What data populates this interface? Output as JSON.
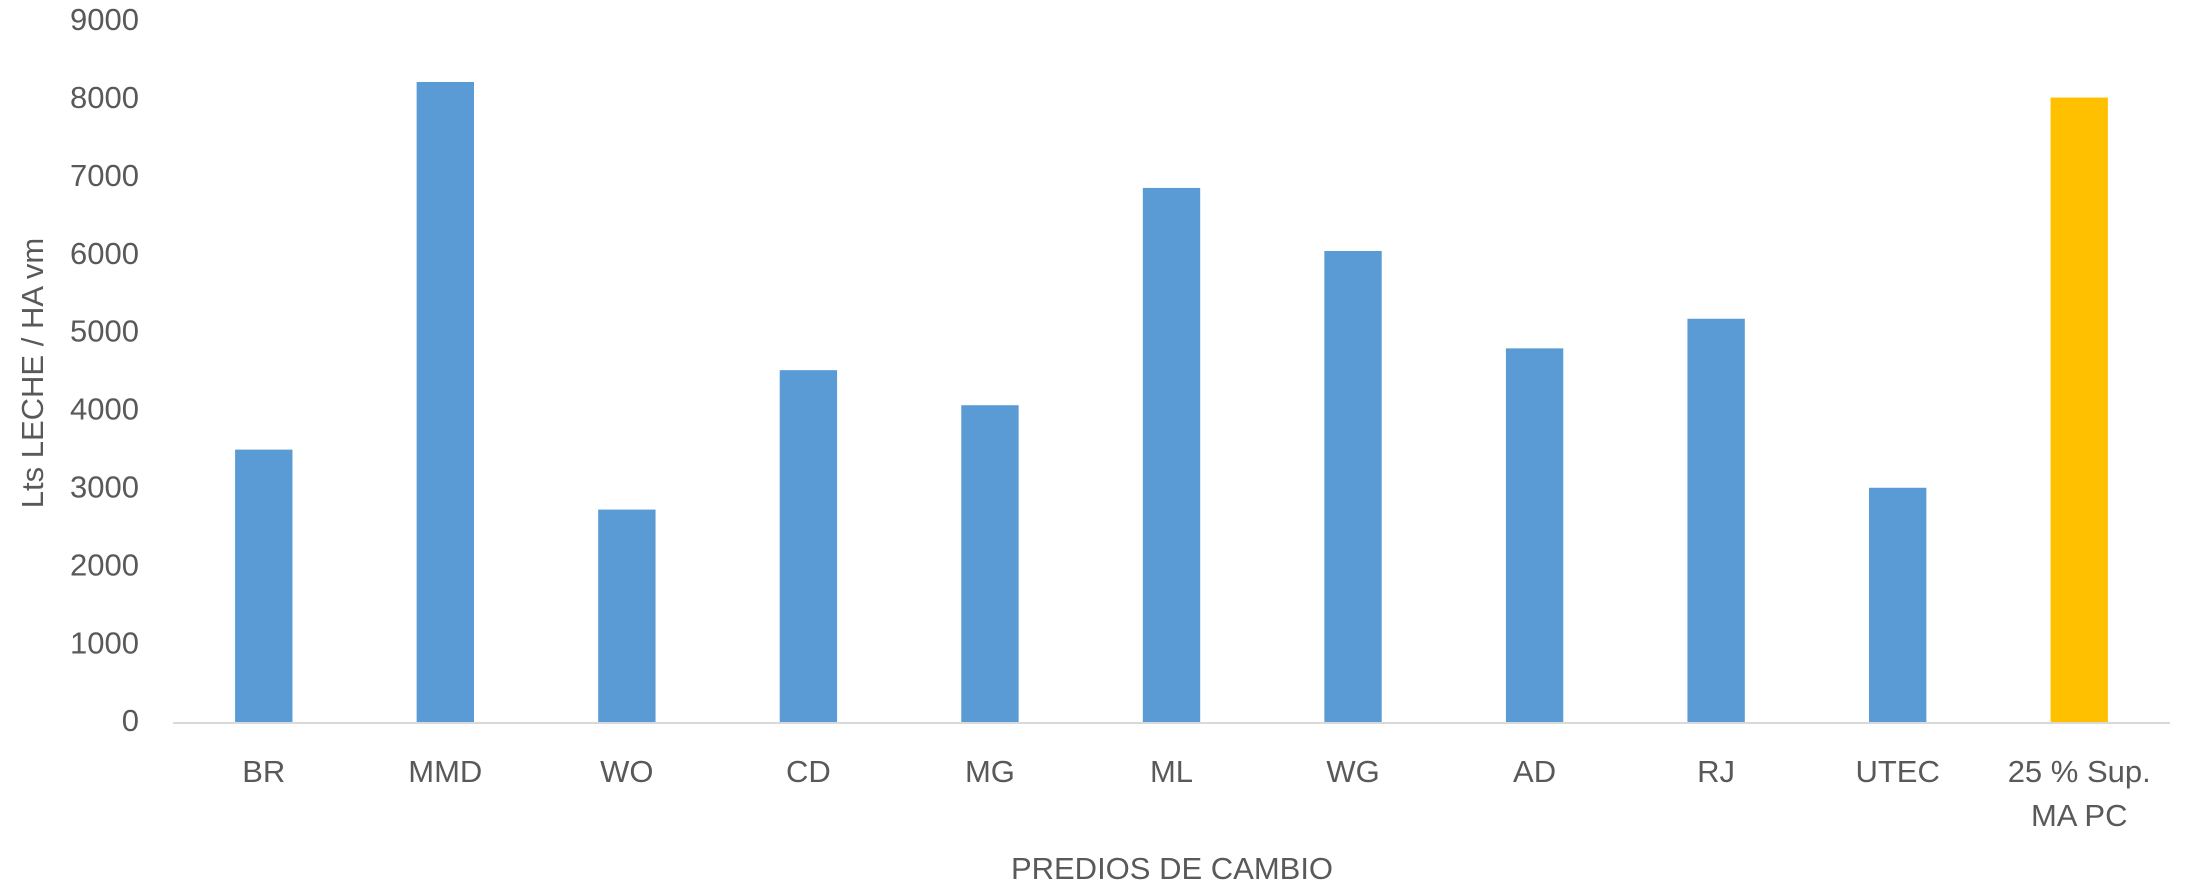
{
  "chart_data": {
    "type": "bar",
    "x_label": "PREDIOS DE CAMBIO",
    "y_label": "Lts LECHE / HA vm",
    "categories": [
      "BR",
      "MMD",
      "WO",
      "CD",
      "MG",
      "ML",
      "WG",
      "AD",
      "RJ",
      "UTEC",
      "25 % Sup. MA PC"
    ],
    "values": [
      3510,
      8230,
      2740,
      4530,
      4080,
      6870,
      6060,
      4810,
      5190,
      3020,
      8030
    ],
    "colors": [
      "#5b9bd5",
      "#5b9bd5",
      "#5b9bd5",
      "#5b9bd5",
      "#5b9bd5",
      "#5b9bd5",
      "#5b9bd5",
      "#5b9bd5",
      "#5b9bd5",
      "#5b9bd5",
      "#ffc000"
    ],
    "ylim": [
      0,
      9000
    ],
    "yticks": [
      0,
      1000,
      2000,
      3000,
      4000,
      5000,
      6000,
      7000,
      8000,
      9000
    ],
    "grid": false
  }
}
